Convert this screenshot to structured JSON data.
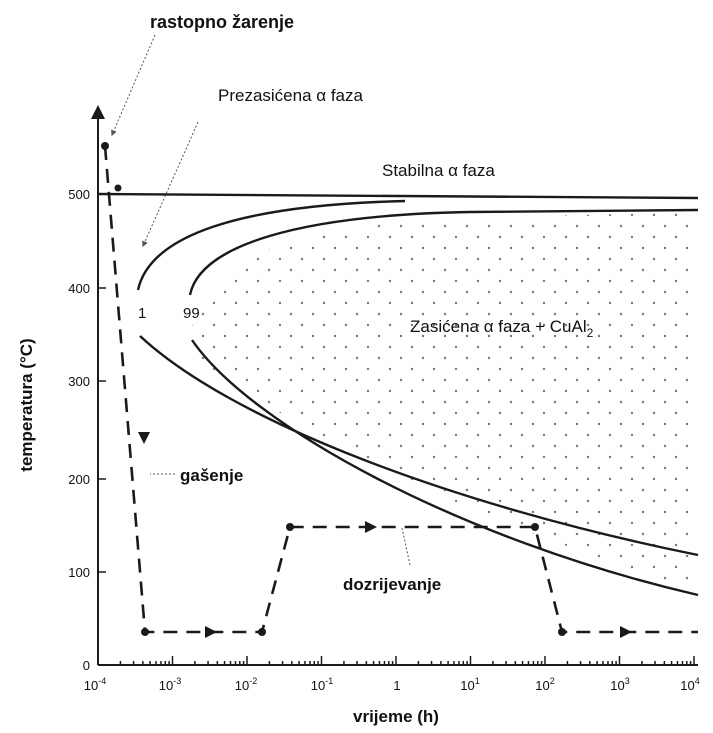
{
  "labels": {
    "solution_anneal": "rastopno žarenje",
    "supersaturated": "Prezasićena α faza",
    "stable": "Stabilna α faza",
    "saturated_main": "Zasićena α faza + CuAl",
    "saturated_sub": "2",
    "quench": "gašenje",
    "aging": "dozrijevanje",
    "curve_1": "1",
    "curve_99": "99"
  },
  "axes": {
    "xlabel": "vrijeme (h)",
    "ylabel": "temperatura (°C)",
    "yticks": [
      "0",
      "100",
      "200",
      "300",
      "400",
      "500"
    ],
    "xticks_base": [
      "10",
      "10",
      "10",
      "10",
      "1",
      "10",
      "10",
      "10",
      "10"
    ],
    "xticks_exp": [
      "-4",
      "-3",
      "-2",
      "-1",
      "",
      "1",
      "2",
      "3",
      "4"
    ]
  },
  "chart_data": {
    "type": "line",
    "xlabel": "vrijeme (h)",
    "ylabel": "temperatura (°C)",
    "xscale": "log",
    "xlim": [
      0.0001,
      10000
    ],
    "ylim": [
      0,
      600
    ],
    "series": [
      {
        "name": "1",
        "x": [
          0.0005,
          0.0004,
          0.0006,
          0.002,
          0.05,
          0.5,
          10,
          100,
          1000,
          10000
        ],
        "y": [
          340,
          395,
          440,
          470,
          487,
          491,
          493,
          494,
          494,
          494
        ]
      },
      {
        "name": "99",
        "x": [
          0.003,
          0.0025,
          0.004,
          0.02,
          0.5,
          10,
          100,
          10000
        ],
        "y": [
          340,
          390,
          430,
          460,
          475,
          478,
          480,
          481
        ]
      },
      {
        "x": [
          0.0004,
          0.001,
          0.01,
          0.1,
          1,
          10,
          100,
          1000,
          10000
        ],
        "y": [
          330,
          300,
          260,
          230,
          210,
          190,
          170,
          145,
          115
        ]
      },
      {
        "x": [
          0.003,
          0.01,
          0.1,
          1,
          10,
          100,
          1000,
          10000
        ],
        "y": [
          330,
          305,
          265,
          235,
          210,
          190,
          160,
          80
        ]
      },
      {
        "x": [
          0.0001,
          10000
        ],
        "y": [
          500,
          496
        ]
      }
    ],
    "process_path": {
      "x": [
        0.00012,
        0.0004,
        0.0004,
        0.02,
        0.045,
        70,
        200,
        10000
      ],
      "y": [
        550,
        40,
        40,
        40,
        148,
        148,
        40,
        40
      ]
    },
    "annotations": [
      "rastopno žarenje",
      "Prezasićena α faza",
      "Stabilna α faza",
      "Zasićena α faza + CuAl2",
      "gašenje",
      "dozrijevanje",
      "1",
      "99"
    ]
  }
}
